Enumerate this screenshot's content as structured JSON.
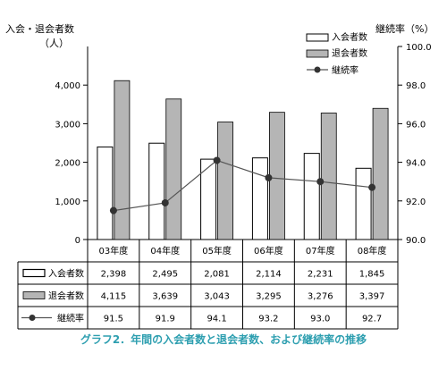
{
  "chart_data": {
    "type": "bar",
    "categories": [
      "03年度",
      "04年度",
      "05年度",
      "06年度",
      "07年度",
      "08年度"
    ],
    "series": [
      {
        "name": "入会者数",
        "type": "bar",
        "axis": "left",
        "color": "#ffffff",
        "values": [
          2398,
          2495,
          2081,
          2114,
          2231,
          1845
        ],
        "labels": [
          "2,398",
          "2,495",
          "2,081",
          "2,114",
          "2,231",
          "1,845"
        ]
      },
      {
        "name": "退会者数",
        "type": "bar",
        "axis": "left",
        "color": "#b5b5b5",
        "values": [
          4115,
          3639,
          3043,
          3295,
          3276,
          3397
        ],
        "labels": [
          "4,115",
          "3,639",
          "3,043",
          "3,295",
          "3,276",
          "3,397"
        ]
      },
      {
        "name": "継続率",
        "type": "line",
        "axis": "right",
        "color": "#404040",
        "values": [
          91.5,
          91.9,
          94.1,
          93.2,
          93.0,
          92.7
        ],
        "labels": [
          "91.5",
          "91.9",
          "94.1",
          "93.2",
          "93.0",
          "92.7"
        ]
      }
    ],
    "ylabel_left": "入会・退会者数",
    "ylabel_left_unit": "（人）",
    "ylabel_right": "継続率（%）",
    "ylim_left": [
      0,
      5000
    ],
    "yticks_left": [
      "0",
      "1,000",
      "2,000",
      "3,000",
      "4,000"
    ],
    "ylim_right": [
      90.0,
      100.0
    ],
    "yticks_right": [
      "90.0",
      "92.0",
      "94.0",
      "96.0",
      "98.0",
      "100.0"
    ],
    "legend_position": "top-right",
    "has_data_table": true,
    "grid": false
  },
  "caption": "グラフ2．年間の入会者数と退会者数、および継続率の推移"
}
